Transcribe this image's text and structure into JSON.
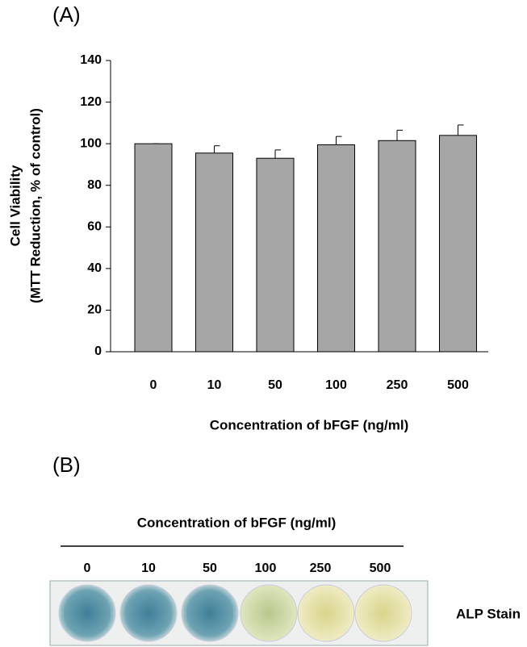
{
  "panel_labels": [
    "(A)",
    "(B)"
  ],
  "chart_data": {
    "type": "bar",
    "xlabel": "Concentration of bFGF (ng/ml)",
    "ylabel": [
      "Cell Viability",
      "(MTT Reduction, % of control)"
    ],
    "categories": [
      "0",
      "10",
      "50",
      "100",
      "250",
      "500"
    ],
    "values": [
      100,
      95.5,
      93,
      99.5,
      101.5,
      104
    ],
    "errors": [
      0,
      3.5,
      4,
      4,
      5,
      5
    ],
    "color": "#a6a6a6",
    "ylim": [
      0,
      140
    ],
    "yticks": [
      0,
      20,
      40,
      60,
      80,
      100,
      120,
      140
    ],
    "grid": false
  },
  "panel_b": {
    "title": "Concentration of bFGF (ng/ml)",
    "concentrations": [
      "0",
      "10",
      "50",
      "100",
      "250",
      "500"
    ],
    "row_label": "ALP Stain"
  }
}
